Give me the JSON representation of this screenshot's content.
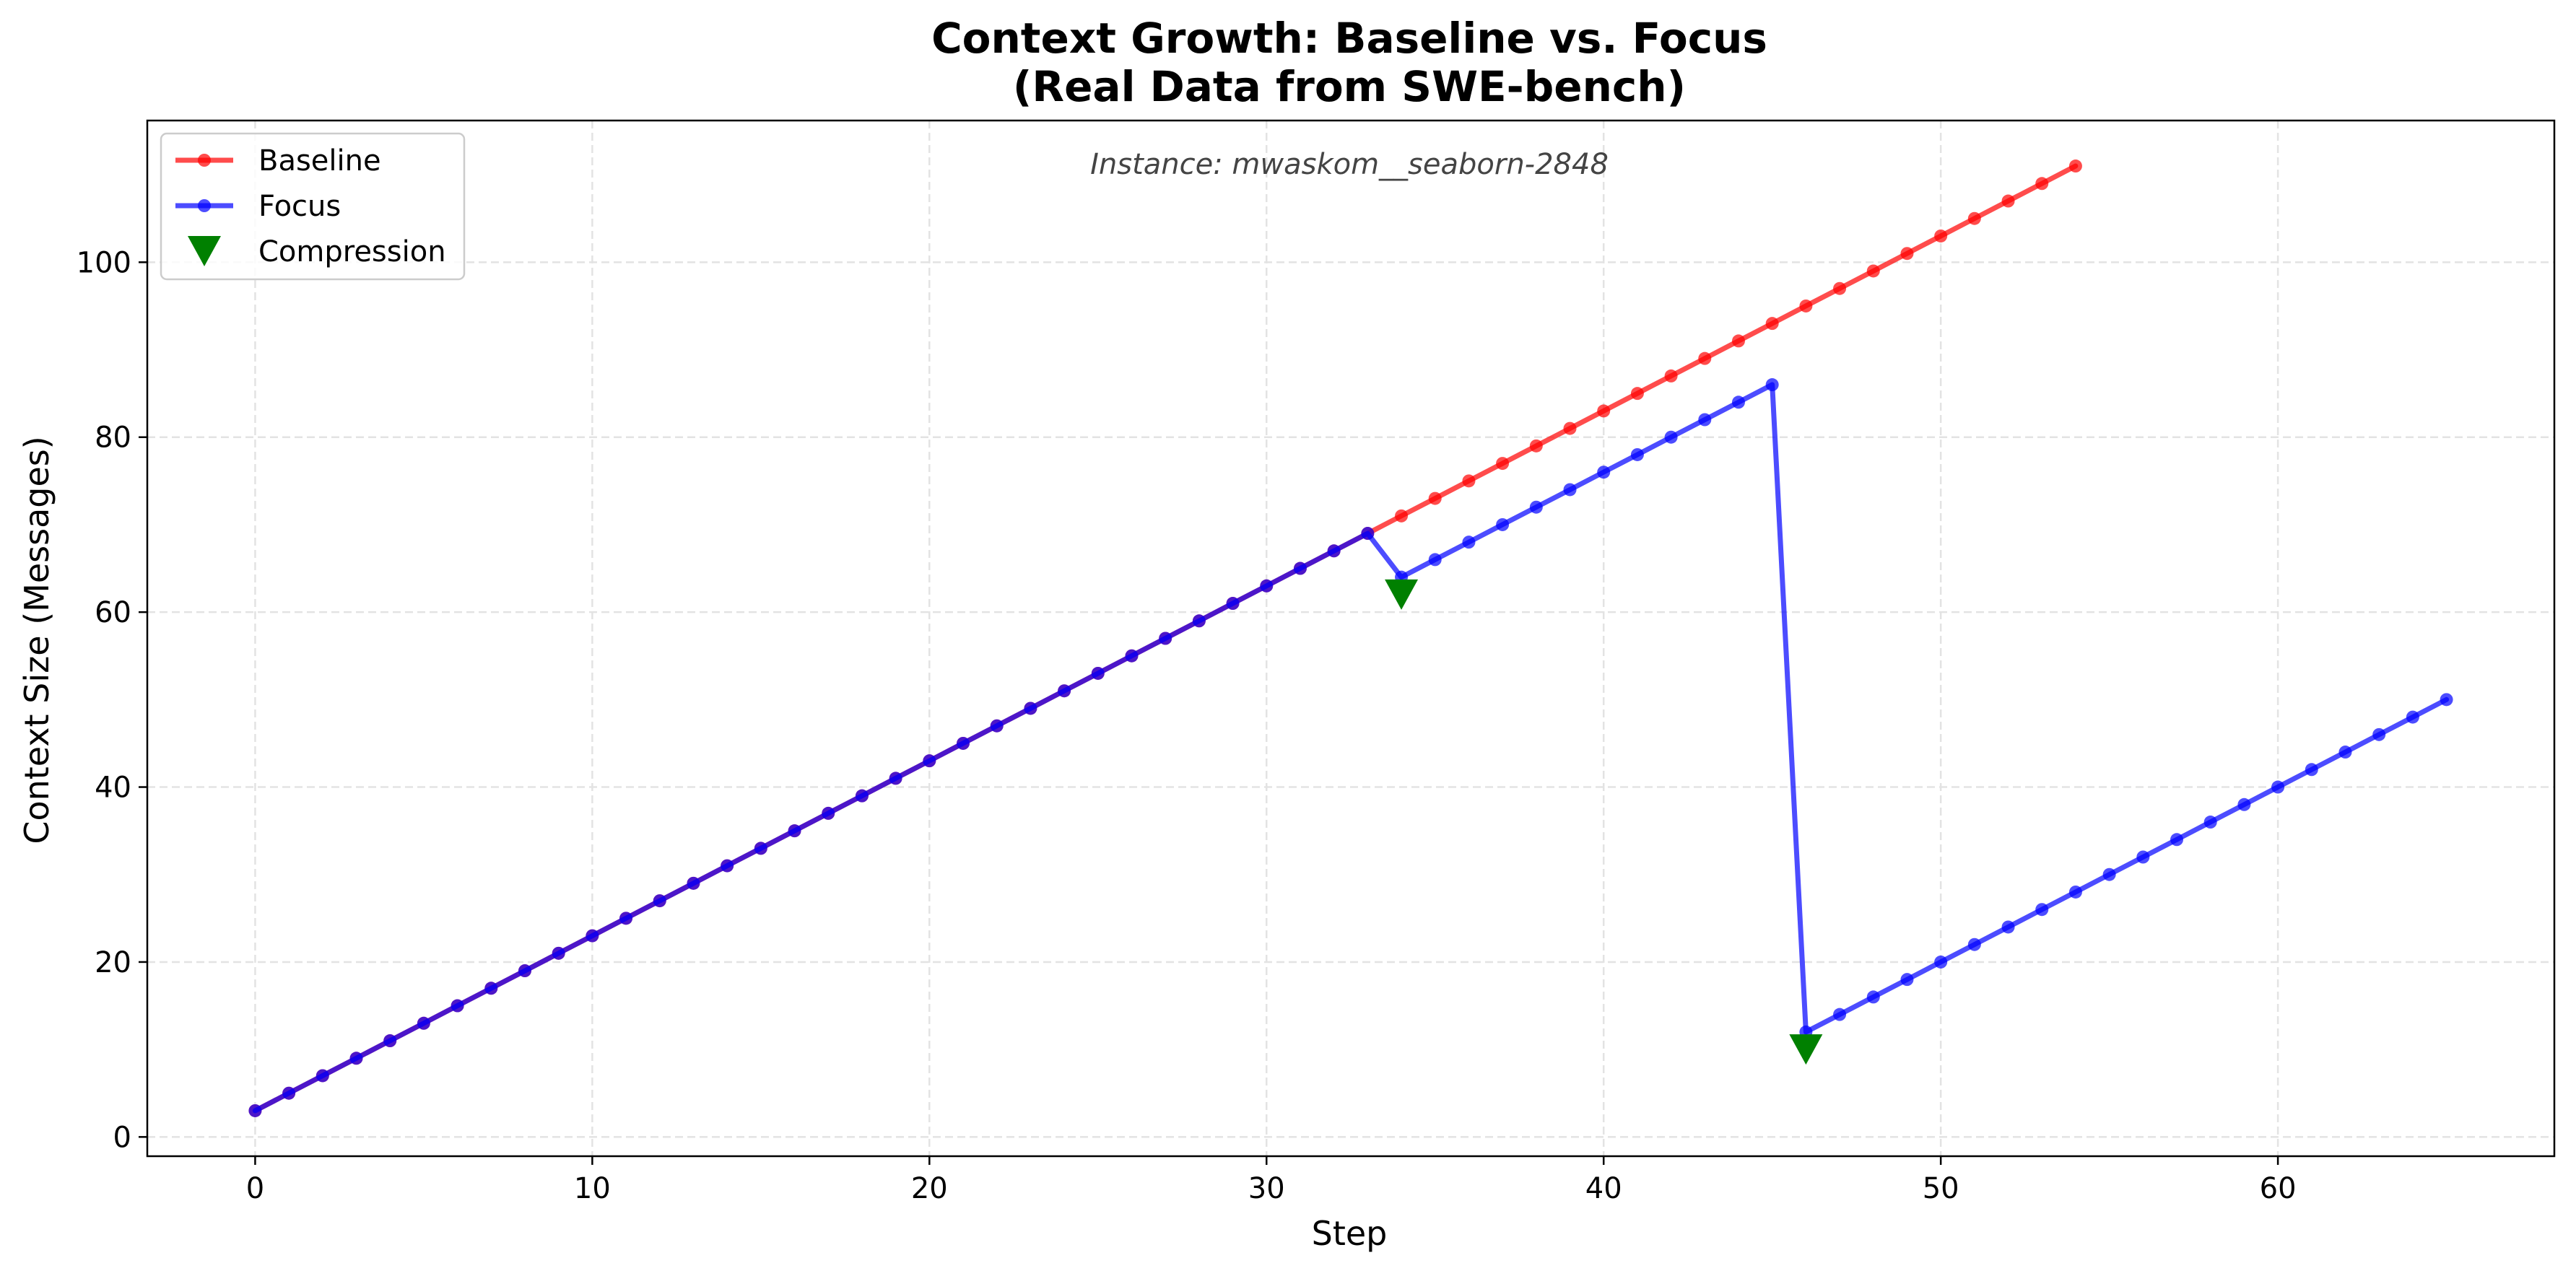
{
  "chart_data": {
    "type": "line",
    "title_line1": "Context Growth: Baseline vs. Focus",
    "title_line2": "(Real Data from SWE-bench)",
    "xlabel": "Step",
    "ylabel": "Context Size (Messages)",
    "annotation": "Instance: mwaskom__seaborn-2848",
    "xlim": [
      -3.2,
      68.2
    ],
    "ylim": [
      -2.2,
      116.2
    ],
    "xticks": [
      0,
      10,
      20,
      30,
      40,
      50,
      60
    ],
    "yticks": [
      0,
      20,
      40,
      60,
      80,
      100
    ],
    "grid": true,
    "legend_position": "top-left",
    "series": [
      {
        "name": "Baseline",
        "color": "#ff0000",
        "marker": "circle",
        "x": [
          0,
          1,
          2,
          3,
          4,
          5,
          6,
          7,
          8,
          9,
          10,
          11,
          12,
          13,
          14,
          15,
          16,
          17,
          18,
          19,
          20,
          21,
          22,
          23,
          24,
          25,
          26,
          27,
          28,
          29,
          30,
          31,
          32,
          33,
          34,
          35,
          36,
          37,
          38,
          39,
          40,
          41,
          42,
          43,
          44,
          45,
          46,
          47,
          48,
          49,
          50,
          51,
          52,
          53,
          54
        ],
        "y": [
          3,
          5,
          7,
          9,
          11,
          13,
          15,
          17,
          19,
          21,
          23,
          25,
          27,
          29,
          31,
          33,
          35,
          37,
          39,
          41,
          43,
          45,
          47,
          49,
          51,
          53,
          55,
          57,
          59,
          61,
          63,
          65,
          67,
          69,
          71,
          73,
          75,
          77,
          79,
          81,
          83,
          85,
          87,
          89,
          91,
          93,
          95,
          97,
          99,
          101,
          103,
          105,
          107,
          109,
          111
        ]
      },
      {
        "name": "Focus",
        "color": "#0000ff",
        "marker": "circle",
        "x": [
          0,
          1,
          2,
          3,
          4,
          5,
          6,
          7,
          8,
          9,
          10,
          11,
          12,
          13,
          14,
          15,
          16,
          17,
          18,
          19,
          20,
          21,
          22,
          23,
          24,
          25,
          26,
          27,
          28,
          29,
          30,
          31,
          32,
          33,
          34,
          35,
          36,
          37,
          38,
          39,
          40,
          41,
          42,
          43,
          44,
          45,
          46,
          47,
          48,
          49,
          50,
          51,
          52,
          53,
          54,
          55,
          56,
          57,
          58,
          59,
          60,
          61,
          62,
          63,
          64,
          65
        ],
        "y": [
          3,
          5,
          7,
          9,
          11,
          13,
          15,
          17,
          19,
          21,
          23,
          25,
          27,
          29,
          31,
          33,
          35,
          37,
          39,
          41,
          43,
          45,
          47,
          49,
          51,
          53,
          55,
          57,
          59,
          61,
          63,
          65,
          67,
          69,
          64,
          66,
          68,
          70,
          72,
          74,
          76,
          78,
          80,
          82,
          84,
          86,
          12,
          14,
          16,
          18,
          20,
          22,
          24,
          26,
          28,
          30,
          32,
          34,
          36,
          38,
          40,
          42,
          44,
          46,
          48,
          50
        ]
      }
    ],
    "markers": {
      "name": "Compression",
      "color": "#008000",
      "marker": "triangle-down",
      "x": [
        34,
        46
      ],
      "y": [
        62,
        10
      ]
    }
  }
}
